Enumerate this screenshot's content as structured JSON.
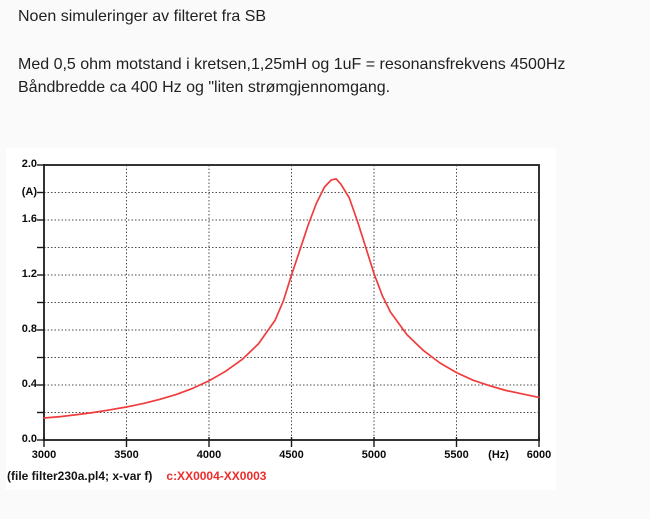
{
  "header": {
    "title": "Noen simuleringer av filteret fra SB",
    "line1": "Med 0,5 ohm motstand i kretsen,1,25mH og 1uF = resonansfrekvens 4500Hz",
    "line2": "Båndbredde ca 400 Hz og \"liten strømgjennomgang."
  },
  "chart_data": {
    "type": "line",
    "title": "",
    "xlabel": "(Hz)",
    "ylabel": "(A)",
    "xlim": [
      3000,
      6000
    ],
    "ylim": [
      0,
      2.0
    ],
    "grid": "dotted",
    "legend_position": "below-left",
    "x_ticks": {
      "values": [
        3000,
        3500,
        4000,
        4500,
        5000,
        5500,
        6000
      ],
      "labels": [
        "3000",
        "3500",
        "4000",
        "4500",
        "5000",
        "5500",
        "6000"
      ]
    },
    "x_unit": {
      "label": "(Hz)",
      "x": 5755
    },
    "y_ticks": {
      "values": [
        0,
        0.2,
        0.4,
        0.6,
        0.8,
        1.0,
        1.2,
        1.4,
        1.6,
        1.8,
        2.0
      ],
      "labels": [
        "0.0",
        "",
        "0.4",
        "",
        "0.8",
        "",
        "1.2",
        "",
        "1.6",
        "(A)",
        "2.0"
      ]
    },
    "x": [
      3000,
      3100,
      3200,
      3300,
      3400,
      3500,
      3600,
      3700,
      3800,
      3900,
      4000,
      4100,
      4200,
      4300,
      4400,
      4450,
      4500,
      4550,
      4600,
      4650,
      4700,
      4740,
      4770,
      4800,
      4850,
      4900,
      4950,
      5000,
      5050,
      5100,
      5200,
      5300,
      5400,
      5500,
      5600,
      5700,
      5800,
      5900,
      6000
    ],
    "series": [
      {
        "name": "c:XX0004-XX0003",
        "color": "#f03c3c",
        "values": [
          0.16,
          0.17,
          0.185,
          0.2,
          0.22,
          0.24,
          0.265,
          0.295,
          0.33,
          0.375,
          0.43,
          0.5,
          0.585,
          0.7,
          0.87,
          1.01,
          1.2,
          1.38,
          1.56,
          1.72,
          1.84,
          1.89,
          1.9,
          1.86,
          1.76,
          1.59,
          1.4,
          1.21,
          1.05,
          0.93,
          0.765,
          0.65,
          0.56,
          0.49,
          0.435,
          0.395,
          0.36,
          0.335,
          0.31
        ]
      }
    ],
    "peak": {
      "x": 4760,
      "y": 1.9
    }
  },
  "footer": {
    "caption": "(file filter230a.pl4; x-var f)",
    "trace_label": "c:XX0004-XX0003",
    "trace_color": "#ee2c2c"
  }
}
